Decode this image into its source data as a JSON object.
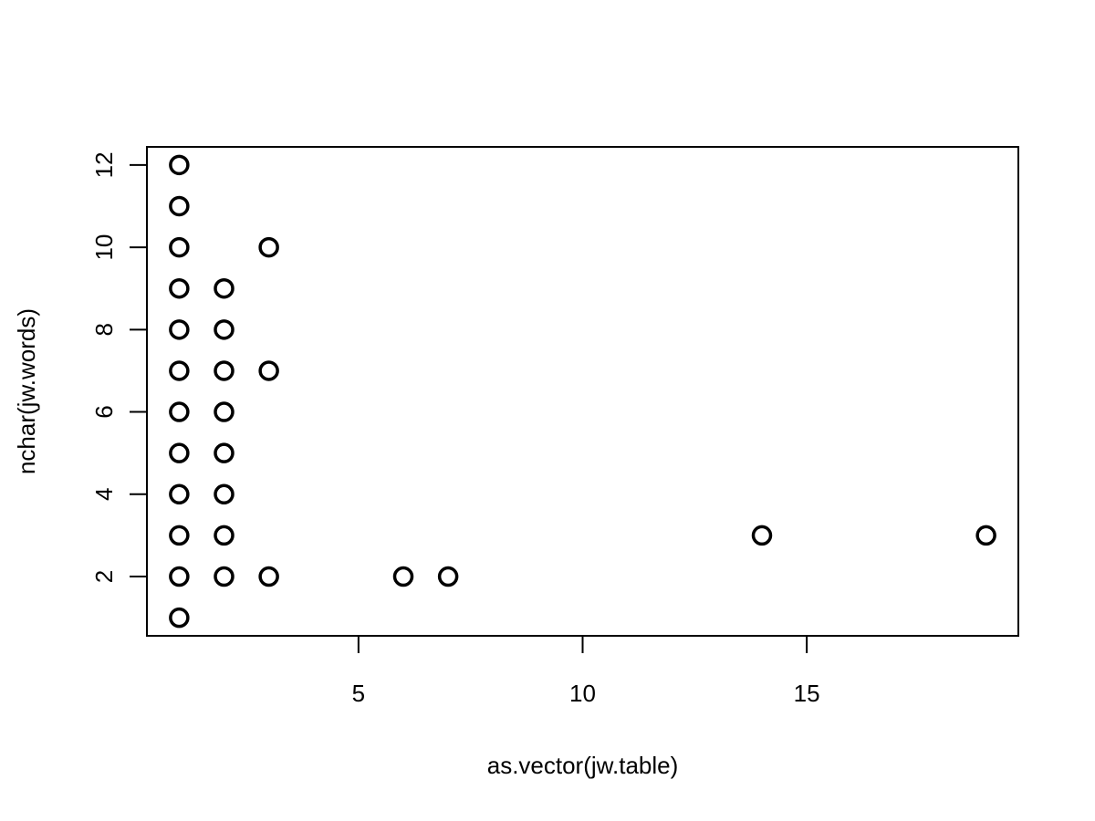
{
  "chart_data": {
    "type": "scatter",
    "xlabel": "as.vector(jw.table)",
    "ylabel": "nchar(jw.words)",
    "xlim": [
      0.28,
      19.72
    ],
    "ylim": [
      0.56,
      12.44
    ],
    "x_ticks": [
      5,
      10,
      15
    ],
    "y_ticks": [
      2,
      4,
      6,
      8,
      10,
      12
    ],
    "grid": false,
    "legend": "none",
    "marker": "open-circle",
    "point_color": "#000000",
    "points": [
      {
        "x": 1,
        "y": 1
      },
      {
        "x": 1,
        "y": 2
      },
      {
        "x": 1,
        "y": 3
      },
      {
        "x": 1,
        "y": 4
      },
      {
        "x": 1,
        "y": 5
      },
      {
        "x": 1,
        "y": 6
      },
      {
        "x": 1,
        "y": 7
      },
      {
        "x": 1,
        "y": 8
      },
      {
        "x": 1,
        "y": 9
      },
      {
        "x": 1,
        "y": 10
      },
      {
        "x": 1,
        "y": 11
      },
      {
        "x": 1,
        "y": 12
      },
      {
        "x": 2,
        "y": 2
      },
      {
        "x": 2,
        "y": 3
      },
      {
        "x": 2,
        "y": 4
      },
      {
        "x": 2,
        "y": 5
      },
      {
        "x": 2,
        "y": 6
      },
      {
        "x": 2,
        "y": 7
      },
      {
        "x": 2,
        "y": 8
      },
      {
        "x": 2,
        "y": 9
      },
      {
        "x": 3,
        "y": 2
      },
      {
        "x": 3,
        "y": 7
      },
      {
        "x": 3,
        "y": 10
      },
      {
        "x": 6,
        "y": 2
      },
      {
        "x": 7,
        "y": 2
      },
      {
        "x": 14,
        "y": 3
      },
      {
        "x": 19,
        "y": 3
      }
    ]
  }
}
